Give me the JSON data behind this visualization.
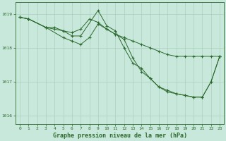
{
  "line1": {
    "x": [
      0,
      1,
      3,
      4,
      5,
      6,
      7,
      8,
      9,
      10,
      11,
      12,
      13,
      14,
      15,
      16,
      17,
      18,
      19,
      20,
      21,
      22,
      23
    ],
    "y": [
      1018.9,
      1018.85,
      1018.6,
      1018.55,
      1018.5,
      1018.45,
      1018.55,
      1018.85,
      1018.75,
      1018.55,
      1018.4,
      1018.3,
      1018.2,
      1018.1,
      1018.0,
      1017.9,
      1017.8,
      1017.75,
      1017.75,
      1017.75,
      1017.75,
      1017.75,
      1017.75
    ]
  },
  "line2": {
    "x": [
      0,
      1,
      3,
      4,
      5,
      6,
      7,
      9,
      10,
      11,
      12,
      13,
      14,
      15,
      16,
      17,
      18,
      19,
      20,
      21,
      22,
      23
    ],
    "y": [
      1018.9,
      1018.85,
      1018.6,
      1018.6,
      1018.5,
      1018.35,
      1018.35,
      1019.1,
      1018.65,
      1018.5,
      1018.0,
      1017.55,
      1017.4,
      1017.1,
      1016.85,
      1016.75,
      1016.65,
      1016.6,
      1016.55,
      1016.55,
      1017.0,
      1017.75
    ]
  },
  "line3": {
    "x": [
      0,
      1,
      3,
      5,
      6,
      7,
      8,
      9,
      10,
      11,
      12,
      13,
      14,
      15,
      16,
      17,
      18,
      19,
      20,
      21,
      22,
      23
    ],
    "y": [
      1018.9,
      1018.85,
      1018.6,
      1018.3,
      1018.2,
      1018.1,
      1018.3,
      1018.7,
      1018.55,
      1018.4,
      1018.25,
      1017.7,
      1017.3,
      1017.1,
      1016.85,
      1016.7,
      1016.65,
      1016.6,
      1016.55,
      1016.55,
      1017.0,
      1017.75
    ]
  },
  "color": "#2d6a2d",
  "bg_color": "#c8e8dc",
  "grid_color": "#aacfbf",
  "title": "Graphe pression niveau de la mer (hPa)",
  "xlim": [
    -0.5,
    23.5
  ],
  "ylim": [
    1015.75,
    1019.35
  ],
  "yticks": [
    1016,
    1017,
    1018,
    1019
  ],
  "xticks": [
    0,
    1,
    2,
    3,
    4,
    5,
    6,
    7,
    8,
    9,
    10,
    11,
    12,
    13,
    14,
    15,
    16,
    17,
    18,
    19,
    20,
    21,
    22,
    23
  ]
}
